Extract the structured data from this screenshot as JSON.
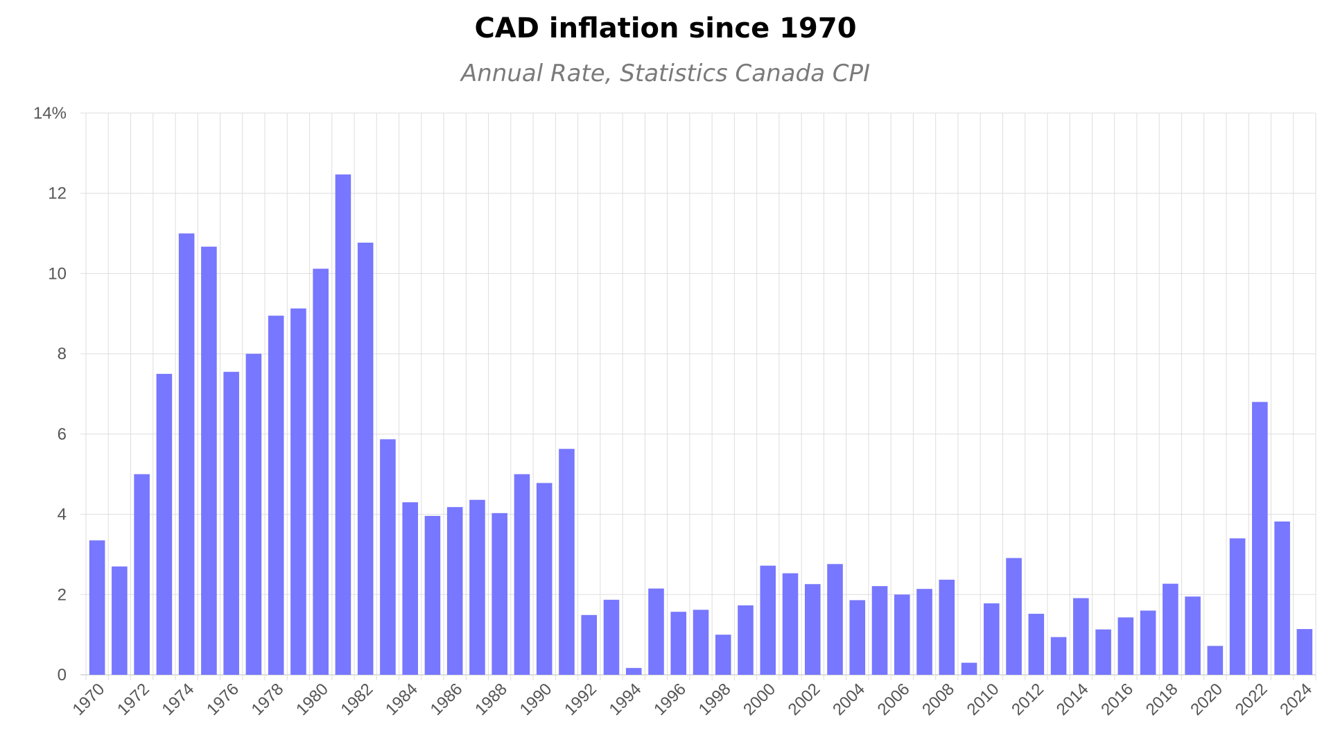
{
  "chart_data": {
    "type": "bar",
    "title": "CAD inflation since 1970",
    "subtitle": "Annual Rate, Statistics Canada CPI",
    "xlabel": "",
    "ylabel": "",
    "ylim": [
      0,
      14
    ],
    "y_ticks": [
      "0",
      "2",
      "4",
      "6",
      "8",
      "10",
      "12",
      "14%"
    ],
    "y_tick_values": [
      0,
      2,
      4,
      6,
      8,
      10,
      12,
      14
    ],
    "grid": true,
    "bar_color": "#7777ff",
    "grid_color": "#dddddd",
    "categories": [
      1970,
      1971,
      1972,
      1973,
      1974,
      1975,
      1976,
      1977,
      1978,
      1979,
      1980,
      1981,
      1982,
      1983,
      1984,
      1985,
      1986,
      1987,
      1988,
      1989,
      1990,
      1991,
      1992,
      1993,
      1994,
      1995,
      1996,
      1997,
      1998,
      1999,
      2000,
      2001,
      2002,
      2003,
      2004,
      2005,
      2006,
      2007,
      2008,
      2009,
      2010,
      2011,
      2012,
      2013,
      2014,
      2015,
      2016,
      2017,
      2018,
      2019,
      2020,
      2021,
      2022,
      2023,
      2024
    ],
    "x_tick_labels": [
      "1970",
      "1972",
      "1974",
      "1976",
      "1978",
      "1980",
      "1982",
      "1984",
      "1986",
      "1988",
      "1990",
      "1992",
      "1994",
      "1996",
      "1998",
      "2000",
      "2002",
      "2004",
      "2006",
      "2008",
      "2010",
      "2012",
      "2014",
      "2016",
      "2018",
      "2020",
      "2022",
      "2024"
    ],
    "values": [
      3.35,
      2.7,
      5.0,
      7.5,
      11.0,
      10.67,
      7.55,
      8.0,
      8.95,
      9.13,
      10.12,
      12.47,
      10.77,
      5.87,
      4.3,
      3.96,
      4.18,
      4.36,
      4.03,
      5.0,
      4.78,
      5.63,
      1.49,
      1.87,
      0.17,
      2.15,
      1.57,
      1.62,
      1.0,
      1.73,
      2.72,
      2.53,
      2.26,
      2.76,
      1.86,
      2.21,
      2.0,
      2.14,
      2.37,
      0.3,
      1.78,
      2.91,
      1.52,
      0.94,
      1.91,
      1.13,
      1.43,
      1.6,
      2.27,
      1.95,
      0.72,
      3.4,
      6.8,
      3.82,
      1.14
    ]
  }
}
